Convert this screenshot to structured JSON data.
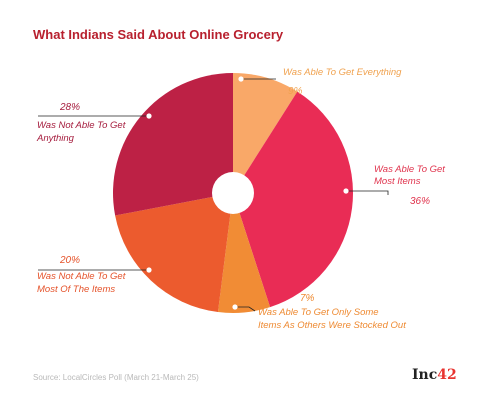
{
  "chart_data": {
    "type": "pie",
    "title": "What Indians Said About Online Grocery",
    "slices": [
      {
        "label": "Was Able To Get Everything",
        "value": 9,
        "value_label": "9%",
        "color": "#f9a868"
      },
      {
        "label": "Was Able To Get Most Items",
        "value": 36,
        "value_label": "36%",
        "color": "#e92c55"
      },
      {
        "label": "Was Able To Get Only Some Items As Others Were Stocked Out",
        "value": 7,
        "value_label": "7%",
        "color": "#f18c35"
      },
      {
        "label": "Was Not Able To Get Most Of The Items",
        "value": 20,
        "value_label": "20%",
        "color": "#ec5b2e"
      },
      {
        "label": "Was Not Able To Get Anything",
        "value": 28,
        "value_label": "28%",
        "color": "#bd2145"
      }
    ],
    "center_hole": true,
    "start_angle": "top",
    "direction": "clockwise"
  },
  "source": "Source: LocalCircles Poll (March 21-March 25)",
  "logo": {
    "main": "Inc",
    "accent": "42"
  }
}
